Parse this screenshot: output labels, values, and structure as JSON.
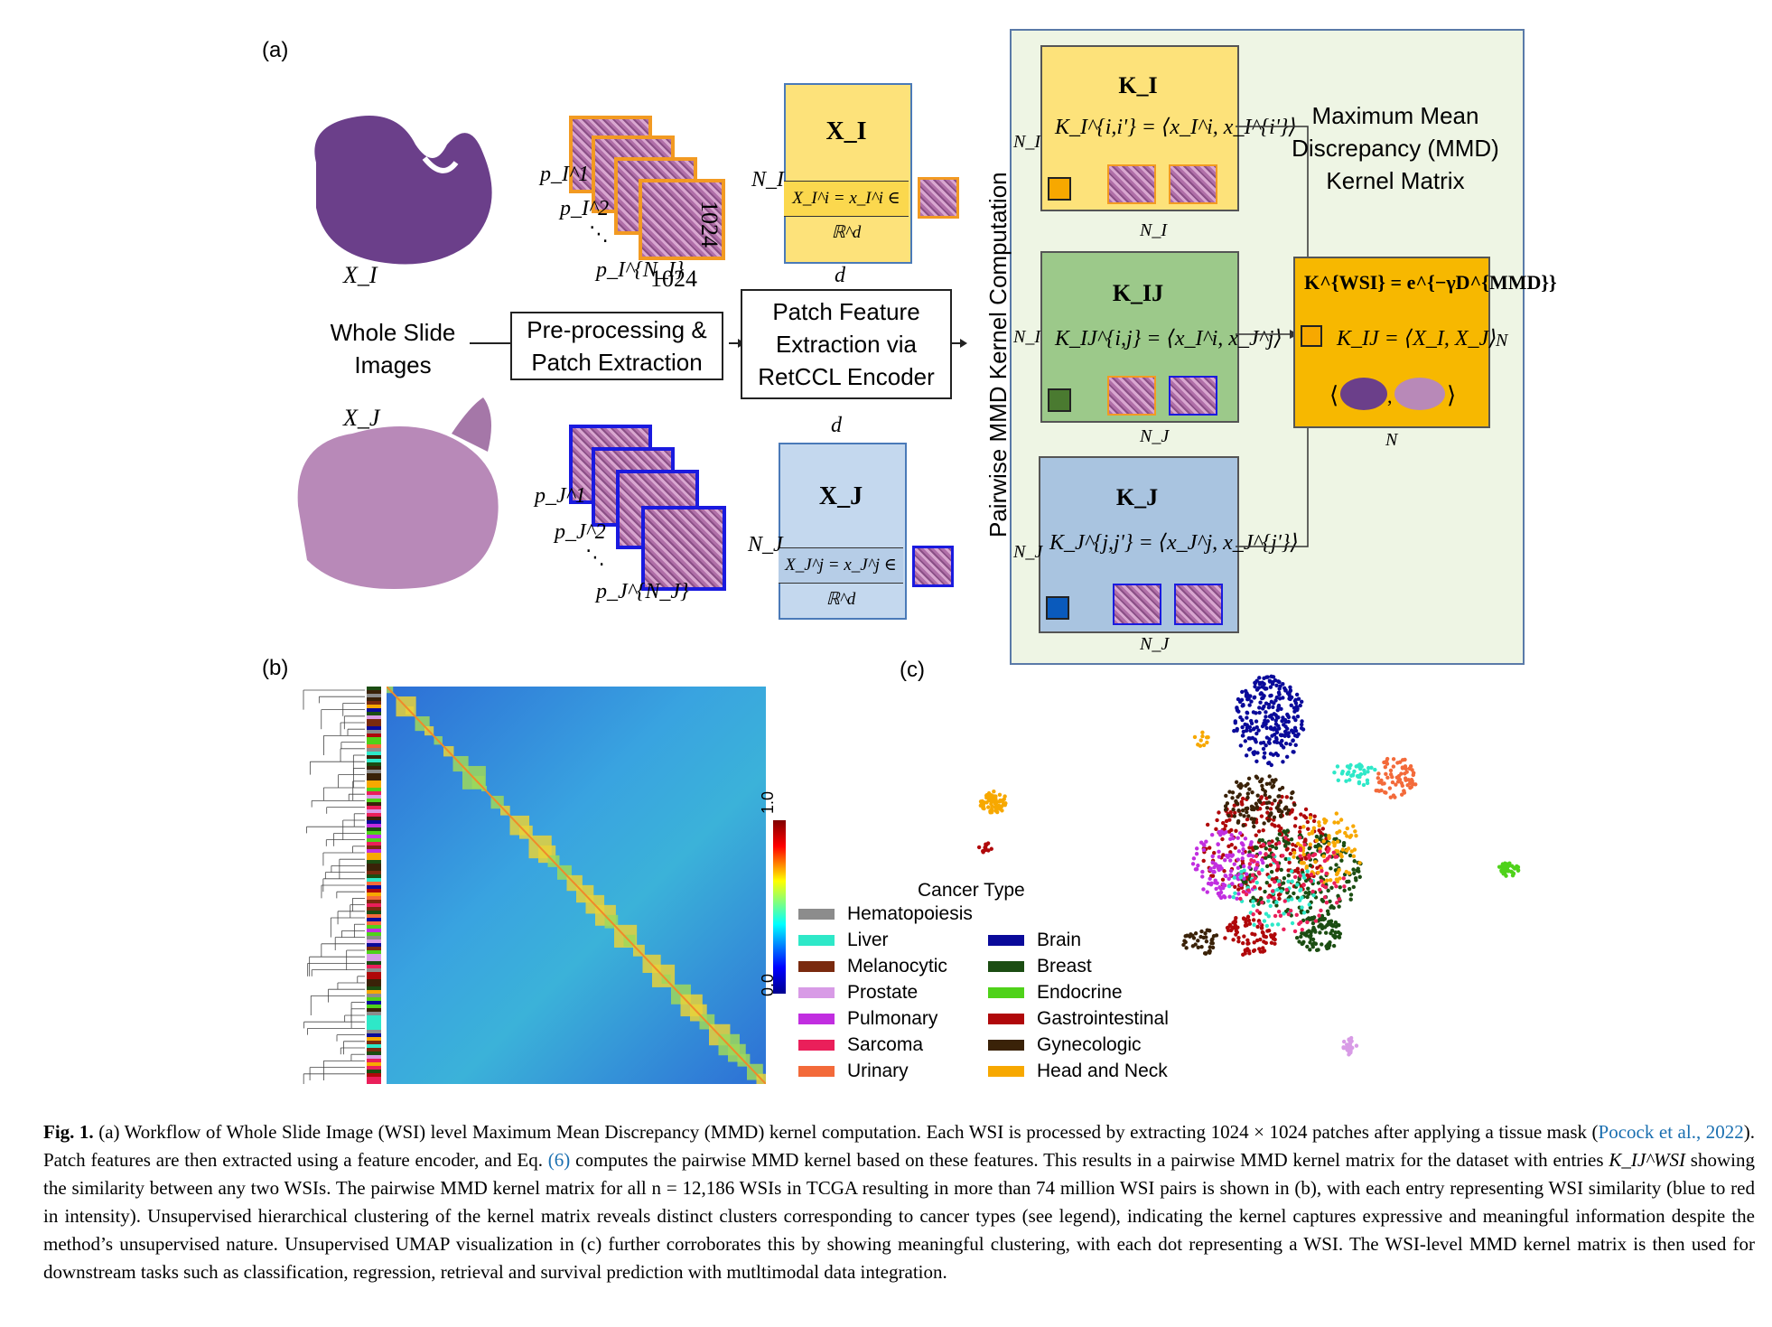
{
  "panels": {
    "a": "(a)",
    "b": "(b)",
    "c": "(c)"
  },
  "workflow": {
    "wsi_i": "X_I",
    "wsi_j": "X_J",
    "whole_slide": "Whole Slide Images",
    "preprocess": "Pre-processing & Patch Extraction",
    "feature": "Patch Feature Extraction via RetCCL Encoder",
    "patch_size_h": "1024",
    "patch_size_w": "1024",
    "patches_i": [
      "p_I^1",
      "p_I^2",
      "⋱",
      "p_I^{N_I}"
    ],
    "patches_j": [
      "p_J^1",
      "p_J^2",
      "⋱",
      "p_J^{N_J}"
    ],
    "feat_i": {
      "title": "X_I",
      "row": "X_I^i = x_I^i ∈ ℝ^d",
      "rows_label": "N_I",
      "cols_label": "d"
    },
    "feat_j": {
      "title": "X_J",
      "row": "X_J^j = x_J^j ∈ ℝ^d",
      "rows_label": "N_J",
      "cols_label": "d"
    }
  },
  "kernel": {
    "vertical_label": "Pairwise MMD Kernel Computation",
    "k_i": {
      "title": "K_I",
      "eq": "K_I^{i,i'} = ⟨x_I^i, x_I^{i'}⟩",
      "n_left": "N_I",
      "n_bottom": "N_I"
    },
    "k_ij": {
      "title": "K_IJ",
      "eq": "K_IJ^{i,j} = ⟨x_I^i, x_J^j⟩",
      "n_left": "N_I",
      "n_bottom": "N_J"
    },
    "k_j": {
      "title": "K_J",
      "eq": "K_J^{j,j'} = ⟨x_J^j, x_J^{j'}⟩",
      "n_left": "N_J",
      "n_bottom": "N_J"
    },
    "mmd_title": "Maximum Mean Discrepancy (MMD) Kernel Matrix",
    "wsi_eq": "K^{WSI} = e^{−γD^{MMD}}",
    "wsi_pair": "K_IJ = ⟨X_I, X_J⟩",
    "n_right": "N",
    "n_bottom": "N"
  },
  "heatmap": {
    "colorbar_max": "1.0",
    "colorbar_min": "0.0"
  },
  "legend": {
    "title": "Cancer Type",
    "left": [
      {
        "label": "Hematopoiesis",
        "color": "#8c8c8c"
      },
      {
        "label": "Liver",
        "color": "#2ee8c8"
      },
      {
        "label": "Melanocytic",
        "color": "#7a2a0e"
      },
      {
        "label": "Prostate",
        "color": "#d89be6"
      },
      {
        "label": "Pulmonary",
        "color": "#c12ee0"
      },
      {
        "label": "Sarcoma",
        "color": "#ea1f5a"
      },
      {
        "label": "Urinary",
        "color": "#f36a3a"
      }
    ],
    "right": [
      {
        "label": "Brain",
        "color": "#0a0a9a"
      },
      {
        "label": "Breast",
        "color": "#1b4d12"
      },
      {
        "label": "Endocrine",
        "color": "#4fd21a"
      },
      {
        "label": "Gastrointestinal",
        "color": "#b0080a"
      },
      {
        "label": "Gynecologic",
        "color": "#3a2208"
      },
      {
        "label": "Head and Neck",
        "color": "#f7a800"
      }
    ]
  },
  "caption": {
    "label": "Fig. 1.",
    "t1": "(a) Workflow of Whole Slide Image (WSI) level Maximum Mean Discrepancy (MMD) kernel computation. Each WSI is processed by extracting 1024 × 1024 patches after applying a tissue mask (",
    "ref1": "Pocock et al., 2022",
    "t2": "). Patch features are then extracted using a feature encoder, and Eq. ",
    "ref2": "(6)",
    "t3": " computes the pairwise MMD kernel based on these features. This results in a pairwise MMD kernel matrix for the dataset with entries ",
    "sym": "K_IJ^WSI",
    "t4": " showing the similarity between any two WSIs. The pairwise MMD kernel matrix for all n = 12,186 WSIs in TCGA resulting in more than 74 million WSI pairs is shown in (b), with each entry representing WSI similarity (blue to red in intensity). Unsupervised hierarchical clustering of the kernel matrix reveals distinct clusters corresponding to cancer types (see legend), indicating the kernel captures expressive and meaningful information despite the method’s unsupervised nature. Unsupervised UMAP visualization in (c) further corroborates this by showing meaningful clustering, with each dot representing a WSI. The WSI-level MMD kernel matrix is then used for downstream tasks such as classification, regression, retrieval and survival prediction with mutltimodal data integration."
  }
}
